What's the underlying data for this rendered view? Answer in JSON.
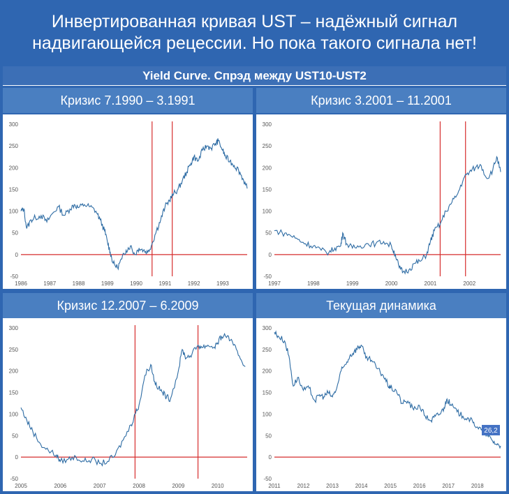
{
  "title": {
    "line1": "Инвертированная кривая UST – надёжный сигнал",
    "line2": "надвигающейся рецессии. Но пока такого сигнала нет!"
  },
  "section_title": "Yield Curve. Спрэд между UST10-UST2",
  "colors": {
    "background": "#2f66b1",
    "header": "#4a7fc1",
    "line": "#2e6ca4",
    "marker": "#d62d2d",
    "badge": "#4472c4"
  },
  "chart_data": [
    {
      "type": "line",
      "panel_title": "Кризис 7.1990 – 3.1991",
      "x_ticks": [
        "1986",
        "1987",
        "1988",
        "1989",
        "1990",
        "1991",
        "1992",
        "1993"
      ],
      "x_range": [
        1986.0,
        1993.85
      ],
      "y_ticks": [
        "300",
        "250",
        "200",
        "150",
        "100",
        "50",
        "0",
        "-50"
      ],
      "ylim": [
        -50,
        300
      ],
      "recession_markers": [
        1990.55,
        1991.25
      ],
      "series": [
        {
          "x": [
            1986.0,
            1986.1,
            1986.2,
            1986.35,
            1986.5,
            1986.7,
            1986.9,
            1987.1,
            1987.3,
            1987.5,
            1987.7,
            1987.85,
            1988.0,
            1988.2,
            1988.4,
            1988.6,
            1988.75,
            1988.9,
            1989.0,
            1989.1,
            1989.2,
            1989.35,
            1989.5,
            1989.65,
            1989.8,
            1989.95,
            1990.1,
            1990.25,
            1990.4,
            1990.55,
            1990.7,
            1990.85,
            1991.0,
            1991.15,
            1991.3,
            1991.45,
            1991.6,
            1991.75,
            1991.9,
            1992.0,
            1992.15,
            1992.3,
            1992.45,
            1992.6,
            1992.75,
            1992.85,
            1993.0,
            1993.1,
            1993.25,
            1993.4,
            1993.55,
            1993.7,
            1993.85
          ],
          "y": [
            100,
            105,
            60,
            80,
            85,
            90,
            75,
            95,
            110,
            90,
            105,
            115,
            108,
            115,
            110,
            100,
            80,
            55,
            30,
            5,
            -20,
            -30,
            -10,
            10,
            20,
            0,
            15,
            10,
            5,
            25,
            55,
            80,
            110,
            125,
            140,
            150,
            170,
            190,
            210,
            225,
            215,
            240,
            250,
            245,
            255,
            262,
            240,
            225,
            215,
            205,
            195,
            175,
            152
          ]
        }
      ]
    },
    {
      "type": "line",
      "panel_title": "Кризис 3.2001 – 11.2001",
      "x_ticks": [
        "1997",
        "1998",
        "1999",
        "2000",
        "2001",
        "2002"
      ],
      "x_range": [
        1997.0,
        2002.8
      ],
      "y_ticks": [
        "300",
        "250",
        "200",
        "150",
        "100",
        "50",
        "0",
        "-50"
      ],
      "ylim": [
        -50,
        300
      ],
      "recession_markers": [
        2001.25,
        2001.9
      ],
      "series": [
        {
          "x": [
            1997.0,
            1997.2,
            1997.4,
            1997.6,
            1997.8,
            1998.0,
            1998.2,
            1998.4,
            1998.55,
            1998.7,
            1998.75,
            1998.85,
            1999.0,
            1999.2,
            1999.4,
            1999.6,
            1999.8,
            2000.0,
            2000.1,
            2000.2,
            2000.3,
            2000.45,
            2000.6,
            2000.75,
            2000.9,
            2001.0,
            2001.1,
            2001.25,
            2001.4,
            2001.55,
            2001.7,
            2001.85,
            2002.0,
            2002.15,
            2002.3,
            2002.45,
            2002.6,
            2002.7,
            2002.8
          ],
          "y": [
            55,
            50,
            45,
            35,
            25,
            20,
            10,
            5,
            15,
            20,
            50,
            25,
            15,
            20,
            25,
            25,
            30,
            20,
            0,
            -30,
            -40,
            -35,
            -20,
            -15,
            0,
            30,
            55,
            70,
            100,
            120,
            140,
            175,
            190,
            200,
            205,
            175,
            195,
            225,
            190
          ]
        }
      ]
    },
    {
      "type": "line",
      "panel_title": "Кризис 12.2007 – 6.2009",
      "x_ticks": [
        "2005",
        "2006",
        "2007",
        "2008",
        "2009",
        "2010"
      ],
      "x_range": [
        2005.0,
        2010.75
      ],
      "y_ticks": [
        "300",
        "250",
        "200",
        "150",
        "100",
        "50",
        "0",
        "-50"
      ],
      "ylim": [
        -50,
        300
      ],
      "recession_markers": [
        2007.9,
        2009.5
      ],
      "series": [
        {
          "x": [
            2005.0,
            2005.15,
            2005.3,
            2005.5,
            2005.7,
            2005.9,
            2006.0,
            2006.2,
            2006.4,
            2006.6,
            2006.8,
            2007.0,
            2007.2,
            2007.4,
            2007.6,
            2007.8,
            2007.9,
            2008.0,
            2008.15,
            2008.3,
            2008.4,
            2008.5,
            2008.6,
            2008.7,
            2008.8,
            2009.0,
            2009.1,
            2009.2,
            2009.35,
            2009.5,
            2009.6,
            2009.75,
            2009.9,
            2010.0,
            2010.1,
            2010.25,
            2010.4,
            2010.55,
            2010.7
          ],
          "y": [
            115,
            85,
            60,
            30,
            15,
            5,
            -10,
            -5,
            0,
            -10,
            -5,
            -15,
            -10,
            5,
            40,
            75,
            100,
            120,
            190,
            215,
            175,
            160,
            150,
            140,
            135,
            200,
            250,
            230,
            240,
            260,
            255,
            260,
            255,
            265,
            280,
            282,
            260,
            235,
            210
          ]
        }
      ]
    },
    {
      "type": "line",
      "panel_title": "Текущая динамика",
      "x_ticks": [
        "2011",
        "2012",
        "2013",
        "2014",
        "2015",
        "2016",
        "2017",
        "2018"
      ],
      "x_range": [
        2011.0,
        2018.8
      ],
      "y_ticks": [
        "300",
        "250",
        "200",
        "150",
        "100",
        "50",
        "0",
        "-50"
      ],
      "ylim": [
        -50,
        300
      ],
      "recession_markers": [],
      "last_value_label": "26,2",
      "series": [
        {
          "x": [
            2011.0,
            2011.15,
            2011.35,
            2011.5,
            2011.65,
            2011.8,
            2012.0,
            2012.2,
            2012.4,
            2012.55,
            2012.7,
            2012.85,
            2013.0,
            2013.15,
            2013.3,
            2013.45,
            2013.6,
            2013.75,
            2013.9,
            2014.0,
            2014.15,
            2014.35,
            2014.55,
            2014.75,
            2014.9,
            2015.0,
            2015.2,
            2015.4,
            2015.6,
            2015.8,
            2016.0,
            2016.2,
            2016.4,
            2016.55,
            2016.7,
            2016.85,
            2016.95,
            2017.1,
            2017.3,
            2017.5,
            2017.7,
            2017.85,
            2018.0,
            2018.2,
            2018.35,
            2018.5,
            2018.65,
            2018.8
          ],
          "y": [
            290,
            280,
            270,
            235,
            165,
            185,
            155,
            160,
            130,
            145,
            140,
            150,
            140,
            160,
            200,
            215,
            235,
            245,
            255,
            260,
            230,
            225,
            205,
            190,
            170,
            160,
            155,
            125,
            130,
            110,
            120,
            95,
            85,
            95,
            100,
            115,
            135,
            120,
            105,
            95,
            90,
            80,
            70,
            60,
            50,
            40,
            30,
            26.2
          ]
        }
      ]
    }
  ]
}
